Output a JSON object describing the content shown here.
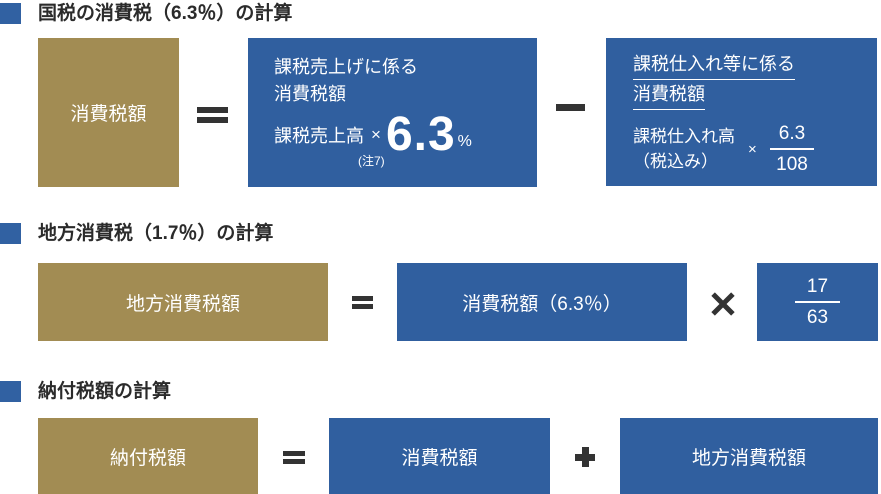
{
  "colors": {
    "accent_blue": "#305f9f",
    "accent_gold": "#a28c53",
    "operator_dark": "#333333",
    "title_text": "#2b2b2b",
    "box_text": "#ffffff"
  },
  "sections": {
    "national": {
      "title": "国税の消費税（6.3％）の計算",
      "result_box_label": "消費税額",
      "sales_box": {
        "line1": "課税売上げに係る",
        "line2": "消費税額",
        "base_label": "課税売上高",
        "note": "(注7)",
        "multiply": "×",
        "rate": "6.3",
        "percent": "%"
      },
      "purchase_box": {
        "underline1": "課税仕入れ等に係る",
        "underline2": "消費税額",
        "base_line1": "課税仕入れ高",
        "base_line2": "（税込み）",
        "multiply": "×",
        "fraction": {
          "numerator": "6.3",
          "denominator": "108"
        }
      }
    },
    "local": {
      "title": "地方消費税（1.7％）の計算",
      "result_box_label": "地方消費税額",
      "tax_box_label": "消費税額（6.3％）",
      "fraction": {
        "numerator": "17",
        "denominator": "63"
      }
    },
    "payment": {
      "title": "納付税額の計算",
      "result_box_label": "納付税額",
      "national_box_label": "消費税額",
      "local_box_label": "地方消費税額"
    }
  }
}
